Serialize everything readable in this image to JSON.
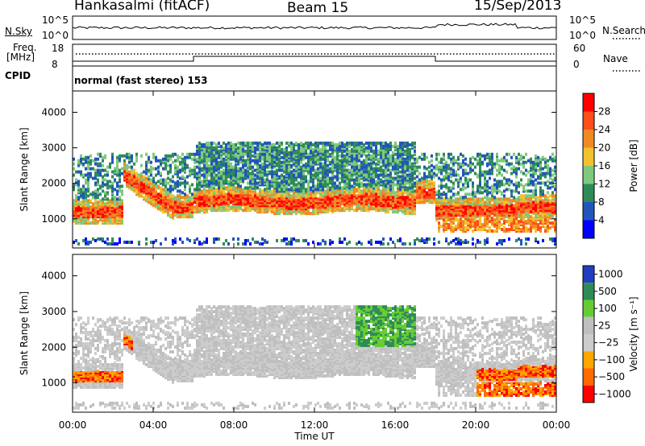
{
  "header": {
    "station": "Hankasalmi (fitACF)",
    "beam": "Beam 15",
    "date": "15/Sep/2013"
  },
  "summary_labels": {
    "nsky": "N.Sky",
    "nsky_top": "10^5",
    "nsky_bottom": "10^0",
    "nsearch": "N.Search",
    "nsearch_top": "10^5",
    "nsearch_bottom": "10^0",
    "freq": "Freq.",
    "freq_unit": "[MHz]",
    "freq_top": "18",
    "freq_bottom": "8",
    "nave": "Nave",
    "nave_top": "60",
    "nave_bottom": "0",
    "cpid": "CPID",
    "cpid_text": "normal (fast stereo) 153"
  },
  "colors": {
    "power": [
      "#0000ff",
      "#2255bb",
      "#2e8b57",
      "#7fc97f",
      "#f2c12e",
      "#f08a24",
      "#ff4d1a",
      "#ff0000"
    ],
    "velocity": [
      "#ff0000",
      "#ff6a00",
      "#ffa500",
      "#cccccc",
      "#bfbfbf",
      "#66cc33",
      "#2e8b57",
      "#1f3fbf"
    ]
  },
  "chart_data": [
    {
      "type": "heatmap",
      "title": "Power",
      "xlabel": "Time UT",
      "ylabel": "Slant Range [km]",
      "x_ticks": [
        "00:00",
        "04:00",
        "08:00",
        "12:00",
        "16:00",
        "20:00",
        "00:00"
      ],
      "x_range_hours": [
        0,
        24
      ],
      "y_ticks": [
        "1000",
        "2000",
        "3000",
        "4000"
      ],
      "ylim": [
        180,
        4600
      ],
      "colorbar": {
        "label": "Power [dB]",
        "ticks": [
          "4",
          "8",
          "12",
          "16",
          "20",
          "24",
          "28"
        ],
        "range": [
          0,
          30
        ]
      }
    },
    {
      "type": "heatmap",
      "title": "Velocity",
      "xlabel": "Time UT",
      "ylabel": "Slant Range [km]",
      "x_ticks": [
        "00:00",
        "04:00",
        "08:00",
        "12:00",
        "16:00",
        "20:00",
        "00:00"
      ],
      "x_range_hours": [
        0,
        24
      ],
      "y_ticks": [
        "1000",
        "2000",
        "3000",
        "4000"
      ],
      "ylim": [
        180,
        4600
      ],
      "colorbar": {
        "label": "Velocity [m s⁻¹]",
        "ticks": [
          "1000",
          "500",
          "100",
          "25",
          "−25",
          "−100",
          "−500",
          "−1000"
        ]
      }
    }
  ]
}
